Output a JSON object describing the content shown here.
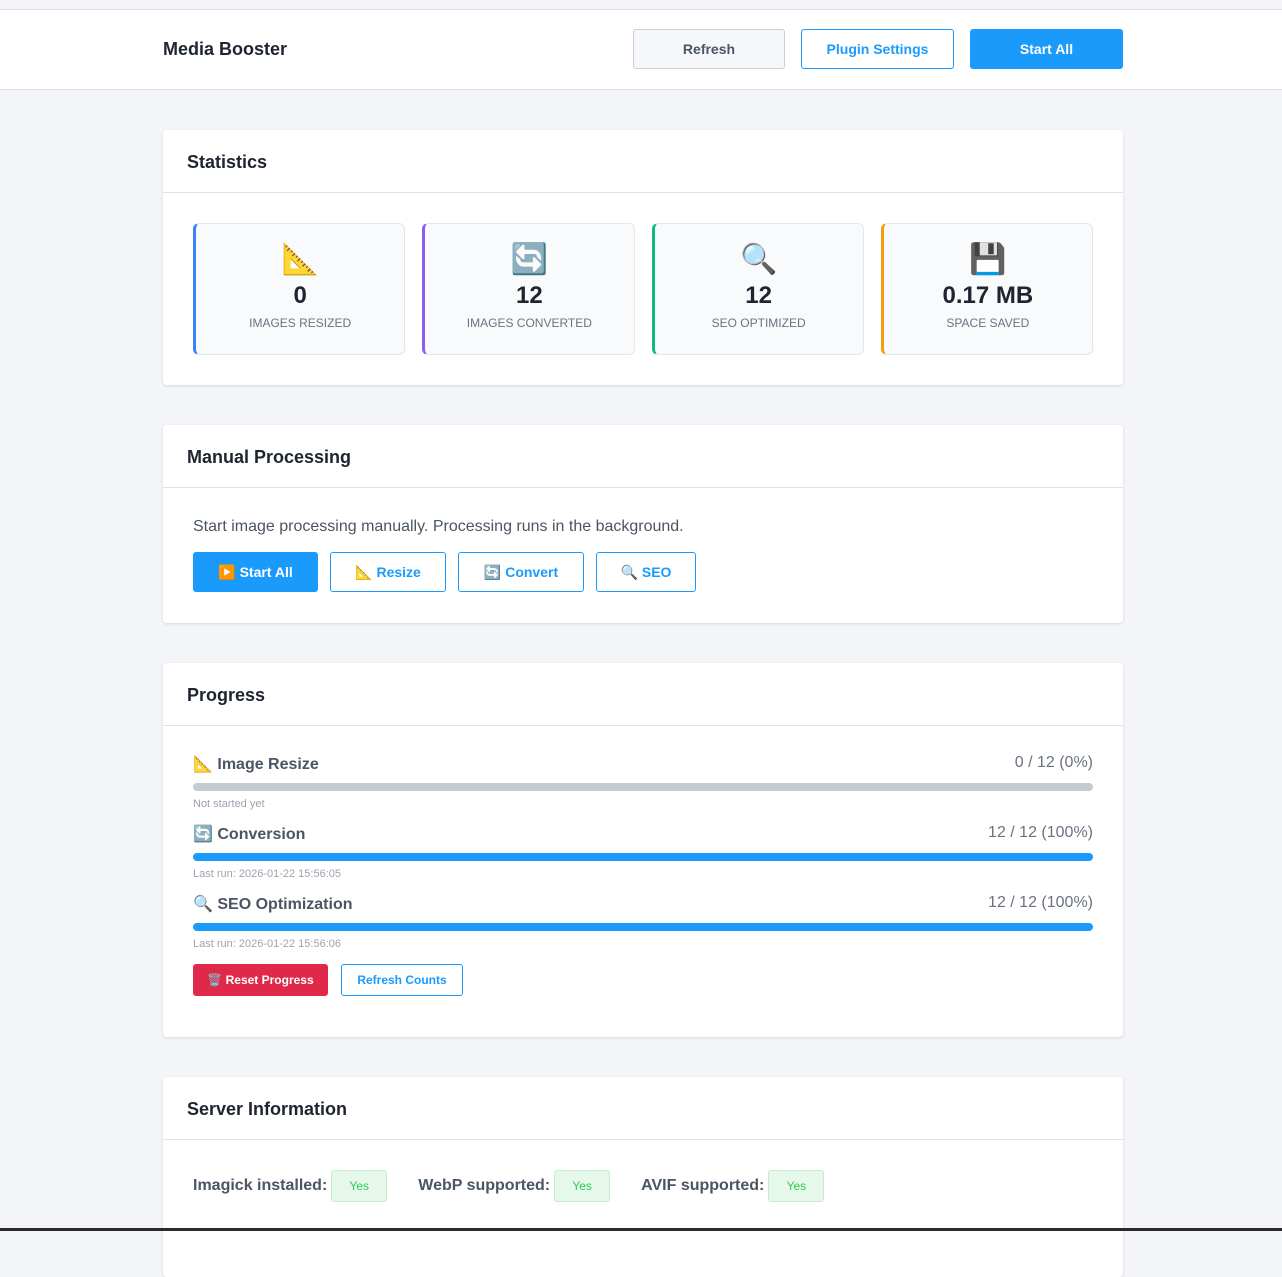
{
  "header": {
    "title": "Media Booster",
    "refresh": "Refresh",
    "plugin_settings": "Plugin Settings",
    "start_all": "Start All"
  },
  "statistics": {
    "title": "Statistics",
    "items": [
      {
        "icon": "📐",
        "icon_name": "triangular-ruler-icon",
        "value": "0",
        "label": "Images Resized",
        "color": "#3b82f6"
      },
      {
        "icon": "🔄",
        "icon_name": "arrows-cycle-icon",
        "value": "12",
        "label": "Images Converted",
        "color": "#8b5cf6"
      },
      {
        "icon": "🔍",
        "icon_name": "magnifier-icon",
        "value": "12",
        "label": "SEO Optimized",
        "color": "#10b981"
      },
      {
        "icon": "💾",
        "icon_name": "floppy-disk-icon",
        "value": "0.17 MB",
        "label": "Space Saved",
        "color": "#f59e0b"
      }
    ]
  },
  "manual": {
    "title": "Manual Processing",
    "description": "Start image processing manually. Processing runs in the background.",
    "buttons": [
      "▶️ Start All",
      "📐 Resize",
      "🔄 Convert",
      "🔍 SEO"
    ]
  },
  "progress": {
    "title": "Progress",
    "items": [
      {
        "name": "📐 Image Resize",
        "count": "0 / 12 (0%)",
        "percent": 0,
        "note": "Not started yet"
      },
      {
        "name": "🔄 Conversion",
        "count": "12 / 12 (100%)",
        "percent": 100,
        "note": "Last run: 2026-01-22 15:56:05"
      },
      {
        "name": "🔍 SEO Optimization",
        "count": "12 / 12 (100%)",
        "percent": 100,
        "note": "Last run: 2026-01-22 15:56:06"
      }
    ],
    "reset": "🗑️ Reset Progress",
    "refresh_counts": "Refresh Counts"
  },
  "server": {
    "title": "Server Information",
    "items": [
      {
        "label": "Imagick installed:",
        "value": "Yes"
      },
      {
        "label": "WebP supported:",
        "value": "Yes"
      },
      {
        "label": "AVIF supported:",
        "value": "Yes"
      }
    ]
  }
}
